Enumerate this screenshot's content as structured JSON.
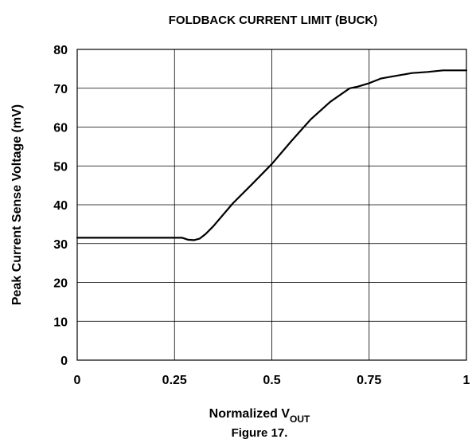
{
  "chart_data": {
    "type": "line",
    "title": "FOLDBACK CURRENT LIMIT (BUCK)",
    "xlabel": "Normalized V",
    "xlabel_sub": "OUT",
    "ylabel": "Peak Current Sense Voltage (mV)",
    "caption": "Figure 17.",
    "xlim": [
      0,
      1
    ],
    "ylim": [
      0,
      80
    ],
    "xticks": [
      0,
      0.25,
      0.5,
      0.75,
      1
    ],
    "xtick_labels": [
      "0",
      "0.25",
      "0.5",
      "0.75",
      "1"
    ],
    "yticks": [
      0,
      10,
      20,
      30,
      40,
      50,
      60,
      70,
      80
    ],
    "ytick_labels": [
      "0",
      "10",
      "20",
      "30",
      "40",
      "50",
      "60",
      "70",
      "80"
    ],
    "grid": true,
    "series": [
      {
        "x": [
          0,
          0.1,
          0.2,
          0.27,
          0.285,
          0.3,
          0.315,
          0.33,
          0.35,
          0.4,
          0.45,
          0.5,
          0.55,
          0.6,
          0.65,
          0.7,
          0.72,
          0.75,
          0.78,
          0.82,
          0.86,
          0.9,
          0.94,
          1.0
        ],
        "y": [
          31.5,
          31.5,
          31.5,
          31.5,
          31.0,
          30.9,
          31.3,
          32.5,
          34.5,
          40.4,
          45.4,
          50.5,
          56.4,
          62.0,
          66.5,
          70.0,
          70.4,
          71.3,
          72.5,
          73.2,
          73.9,
          74.2,
          74.6,
          74.6
        ],
        "color": "#000000"
      }
    ]
  }
}
